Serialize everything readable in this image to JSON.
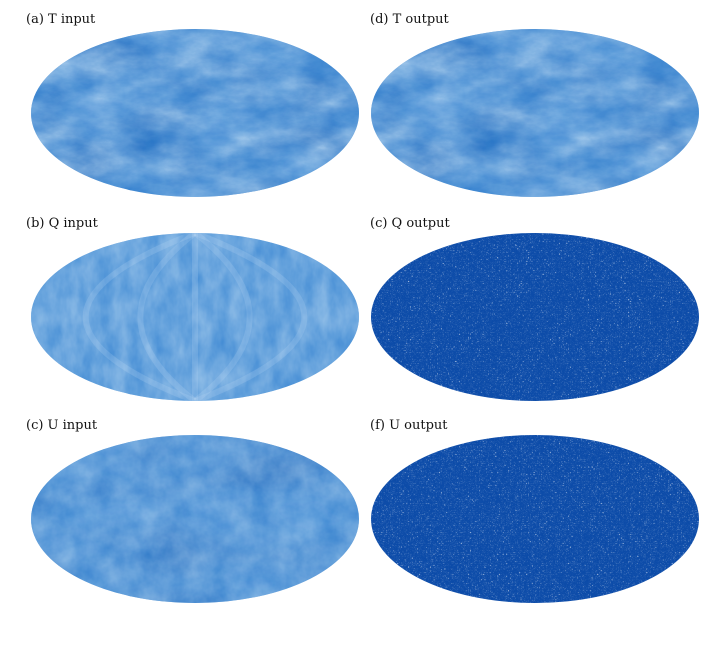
{
  "panels": [
    {
      "label": "(a) T input",
      "field": "T",
      "stage": "input"
    },
    {
      "label": "(d) T output",
      "field": "T",
      "stage": "output"
    },
    {
      "label": "(b) Q input",
      "field": "Q",
      "stage": "input"
    },
    {
      "label": "(c) Q output",
      "field": "Q",
      "stage": "output"
    },
    {
      "label": "(c) U input",
      "field": "U",
      "stage": "input"
    },
    {
      "label": "(f) U output",
      "field": "U",
      "stage": "output"
    }
  ],
  "colors": {
    "base": "#2f7fcf",
    "dark": "#0a4aa8",
    "light": "#cfe6f7",
    "white": "#ffffff"
  }
}
